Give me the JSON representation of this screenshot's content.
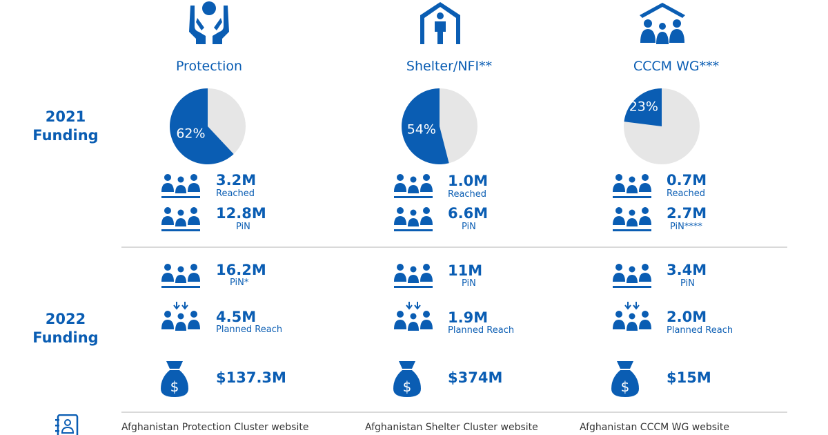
{
  "row_labels": {
    "y2021": [
      "2021",
      "Funding"
    ],
    "y2022": [
      "2022",
      "Funding"
    ]
  },
  "colors": {
    "primary": "#0a5db3",
    "pie_remainder": "#e6e6e6",
    "divider": "#d9d9d9",
    "link_text": "#333333"
  },
  "chart_data": [
    {
      "type": "pie",
      "title": "Protection",
      "slices": [
        {
          "label": "62%",
          "value": 62
        },
        {
          "value": 38
        }
      ]
    },
    {
      "type": "pie",
      "title": "Shelter/NFI**",
      "slices": [
        {
          "label": "54%",
          "value": 54
        },
        {
          "value": 46
        }
      ]
    },
    {
      "type": "pie",
      "title": "CCCM WG***",
      "slices": [
        {
          "label": "23%",
          "value": 23
        },
        {
          "value": 77
        }
      ]
    }
  ],
  "clusters": [
    {
      "name": "Protection",
      "icon": "hands-holding-person-icon",
      "y2021": {
        "reached": "3.2M",
        "reached_label": "Reached",
        "pin": "12.8M",
        "pin_label": "PiN"
      },
      "y2022": {
        "pin": "16.2M",
        "pin_label": "PiN*",
        "planned": "4.5M",
        "planned_label": "Planned Reach",
        "funding": "$137.3M"
      },
      "link": "Afghanistan Protection Cluster website"
    },
    {
      "name": "Shelter/NFI**",
      "icon": "house-person-icon",
      "y2021": {
        "reached": "1.0M",
        "reached_label": "Reached",
        "pin": "6.6M",
        "pin_label": "PiN"
      },
      "y2022": {
        "pin": "11M",
        "pin_label": "PiN",
        "planned": "1.9M",
        "planned_label": "Planned Reach",
        "funding": "$374M"
      },
      "link": "Afghanistan Shelter Cluster website"
    },
    {
      "name": "CCCM WG***",
      "icon": "roof-family-icon",
      "y2021": {
        "reached": "0.7M",
        "reached_label": "Reached",
        "pin": "2.7M",
        "pin_label": "PiN****"
      },
      "y2022": {
        "pin": "3.4M",
        "pin_label": "PiN",
        "planned": "2.0M",
        "planned_label": "Planned Reach",
        "funding": "$15M"
      },
      "link": "Afghanistan CCCM WG website"
    }
  ]
}
